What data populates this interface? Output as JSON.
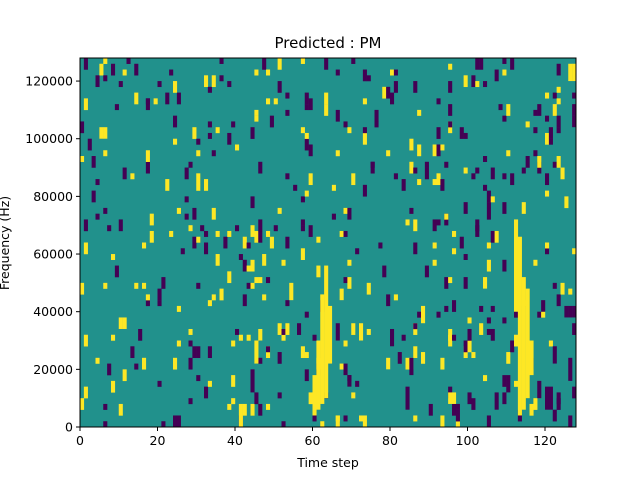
{
  "chart_data": {
    "type": "heatmap",
    "title": "Predicted : PM",
    "xlabel": "Time step",
    "ylabel": "Frequency (Hz)",
    "xlim": [
      0,
      128
    ],
    "ylim": [
      0,
      128000
    ],
    "xticks": [
      0,
      20,
      40,
      60,
      80,
      100,
      120
    ],
    "yticks": [
      0,
      20000,
      40000,
      60000,
      80000,
      100000,
      120000
    ],
    "n_time_steps": 128,
    "n_freq_bins": 64,
    "levels": {
      "low": "#440154",
      "mid": "#21918c",
      "high": "#fde725"
    },
    "background_level": "mid",
    "cells": [
      {
        "t": 60,
        "f0": 4000,
        "f1": 18000,
        "level": "high"
      },
      {
        "t": 61,
        "f0": 6000,
        "f1": 30000,
        "level": "high"
      },
      {
        "t": 62,
        "f0": 8000,
        "f1": 46000,
        "level": "high"
      },
      {
        "t": 63,
        "f0": 10000,
        "f1": 56000,
        "level": "high"
      },
      {
        "t": 64,
        "f0": 22000,
        "f1": 42000,
        "level": "high"
      },
      {
        "t": 112,
        "f0": 40000,
        "f1": 72000,
        "level": "high"
      },
      {
        "t": 113,
        "f0": 4000,
        "f1": 66000,
        "level": "high"
      },
      {
        "t": 114,
        "f0": 6000,
        "f1": 52000,
        "level": "high"
      },
      {
        "t": 115,
        "f0": 10000,
        "f1": 48000,
        "level": "high"
      },
      {
        "t": 116,
        "f0": 18000,
        "f1": 30000,
        "level": "high"
      },
      {
        "t": 127,
        "f0": 38000,
        "f1": 42000,
        "level": "low"
      },
      {
        "t": 126,
        "f0": 38000,
        "f1": 42000,
        "level": "low"
      },
      {
        "t": 125,
        "f0": 38000,
        "f1": 42000,
        "level": "low"
      },
      {
        "t": 126,
        "f0": 16000,
        "f1": 24000,
        "level": "low"
      },
      {
        "t": 120,
        "f0": 6000,
        "f1": 14000,
        "level": "low"
      },
      {
        "t": 121,
        "f0": 6000,
        "f1": 14000,
        "level": "low"
      },
      {
        "t": 24,
        "f0": 0,
        "f1": 4000,
        "level": "low"
      },
      {
        "t": 25,
        "f0": 0,
        "f1": 4000,
        "level": "low"
      },
      {
        "t": 41,
        "f0": 0,
        "f1": 8000,
        "level": "high"
      },
      {
        "t": 44,
        "f0": 12000,
        "f1": 20000,
        "level": "low"
      },
      {
        "t": 45,
        "f0": 22000,
        "f1": 30000,
        "level": "high"
      },
      {
        "t": 46,
        "f0": 30000,
        "f1": 34000,
        "level": "high"
      },
      {
        "t": 54,
        "f0": 44000,
        "f1": 50000,
        "level": "high"
      },
      {
        "t": 66,
        "f0": 30000,
        "f1": 36000,
        "level": "low"
      },
      {
        "t": 67,
        "f0": 44000,
        "f1": 48000,
        "level": "high"
      },
      {
        "t": 68,
        "f0": 18000,
        "f1": 22000,
        "level": "low"
      },
      {
        "t": 69,
        "f0": 14000,
        "f1": 18000,
        "level": "low"
      },
      {
        "t": 72,
        "f0": 30000,
        "f1": 36000,
        "level": "high"
      },
      {
        "t": 79,
        "f0": 20000,
        "f1": 24000,
        "level": "high"
      },
      {
        "t": 80,
        "f0": 28000,
        "f1": 34000,
        "level": "low"
      },
      {
        "t": 84,
        "f0": 6000,
        "f1": 14000,
        "level": "low"
      },
      {
        "t": 85,
        "f0": 18000,
        "f1": 24000,
        "level": "low"
      },
      {
        "t": 88,
        "f0": 36000,
        "f1": 42000,
        "level": "high"
      },
      {
        "t": 95,
        "f0": 8000,
        "f1": 12000,
        "level": "high"
      },
      {
        "t": 96,
        "f0": 8000,
        "f1": 12000,
        "level": "high"
      },
      {
        "t": 104,
        "f0": 48000,
        "f1": 52000,
        "level": "high"
      },
      {
        "t": 107,
        "f0": 6000,
        "f1": 12000,
        "level": "low"
      },
      {
        "t": 110,
        "f0": 12000,
        "f1": 18000,
        "level": "low"
      },
      {
        "t": 118,
        "f0": 10000,
        "f1": 16000,
        "level": "low"
      },
      {
        "t": 122,
        "f0": 22000,
        "f1": 28000,
        "level": "low"
      },
      {
        "t": 119,
        "f0": 40000,
        "f1": 44000,
        "level": "low"
      },
      {
        "t": 10,
        "f0": 34000,
        "f1": 38000,
        "level": "high"
      },
      {
        "t": 11,
        "f0": 34000,
        "f1": 38000,
        "level": "high"
      },
      {
        "t": 5,
        "f0": 100000,
        "f1": 104000,
        "level": "high"
      },
      {
        "t": 6,
        "f0": 100000,
        "f1": 104000,
        "level": "high"
      },
      {
        "t": 127,
        "f0": 120000,
        "f1": 126000,
        "level": "high"
      },
      {
        "t": 126,
        "f0": 120000,
        "f1": 126000,
        "level": "high"
      },
      {
        "t": 127,
        "f0": 104000,
        "f1": 108000,
        "level": "low"
      }
    ]
  }
}
